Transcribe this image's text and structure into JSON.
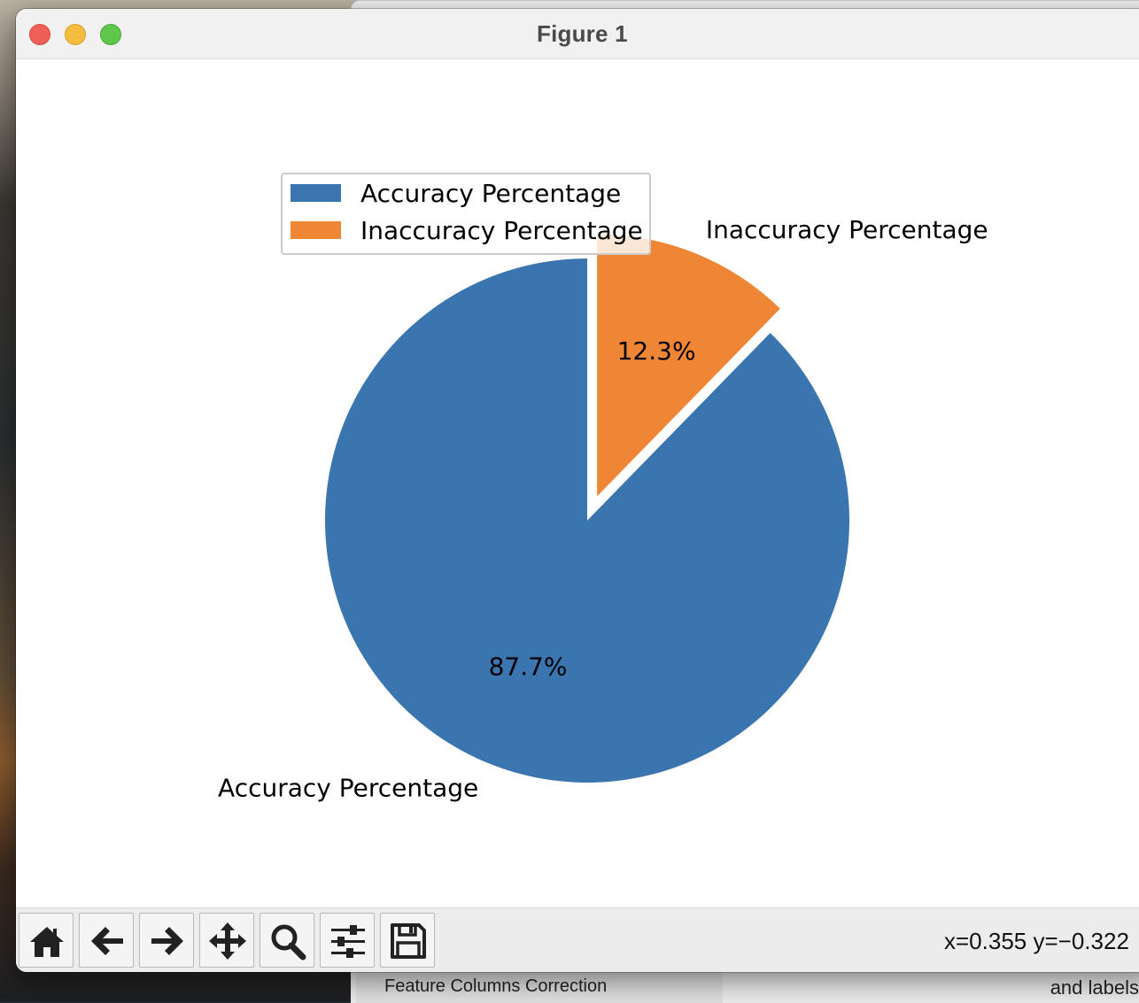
{
  "window": {
    "title": "Figure 1"
  },
  "chart_data": {
    "type": "pie",
    "labels": [
      "Accuracy Percentage",
      "Inaccuracy Percentage"
    ],
    "values": [
      87.7,
      12.3
    ],
    "autopct": [
      "87.7%",
      "12.3%"
    ],
    "colors": [
      "#3b75af",
      "#ef8636"
    ],
    "explode": [
      0,
      0.1
    ],
    "startangle": 90,
    "legend": {
      "location": "upper-left",
      "entries": [
        "Accuracy Percentage",
        "Inaccuracy Percentage"
      ]
    }
  },
  "toolbar": {
    "buttons": [
      {
        "name": "home",
        "icon": "home-icon"
      },
      {
        "name": "back",
        "icon": "arrow-left-icon"
      },
      {
        "name": "forward",
        "icon": "arrow-right-icon"
      },
      {
        "name": "pan",
        "icon": "move-icon"
      },
      {
        "name": "zoom",
        "icon": "magnifier-icon"
      },
      {
        "name": "configure",
        "icon": "sliders-icon"
      },
      {
        "name": "save",
        "icon": "floppy-disk-icon"
      }
    ],
    "coordinates": "x=0.355 y=−0.322"
  },
  "background": {
    "tab_text": "Feature Columns Correction",
    "side_text": "and labels"
  }
}
